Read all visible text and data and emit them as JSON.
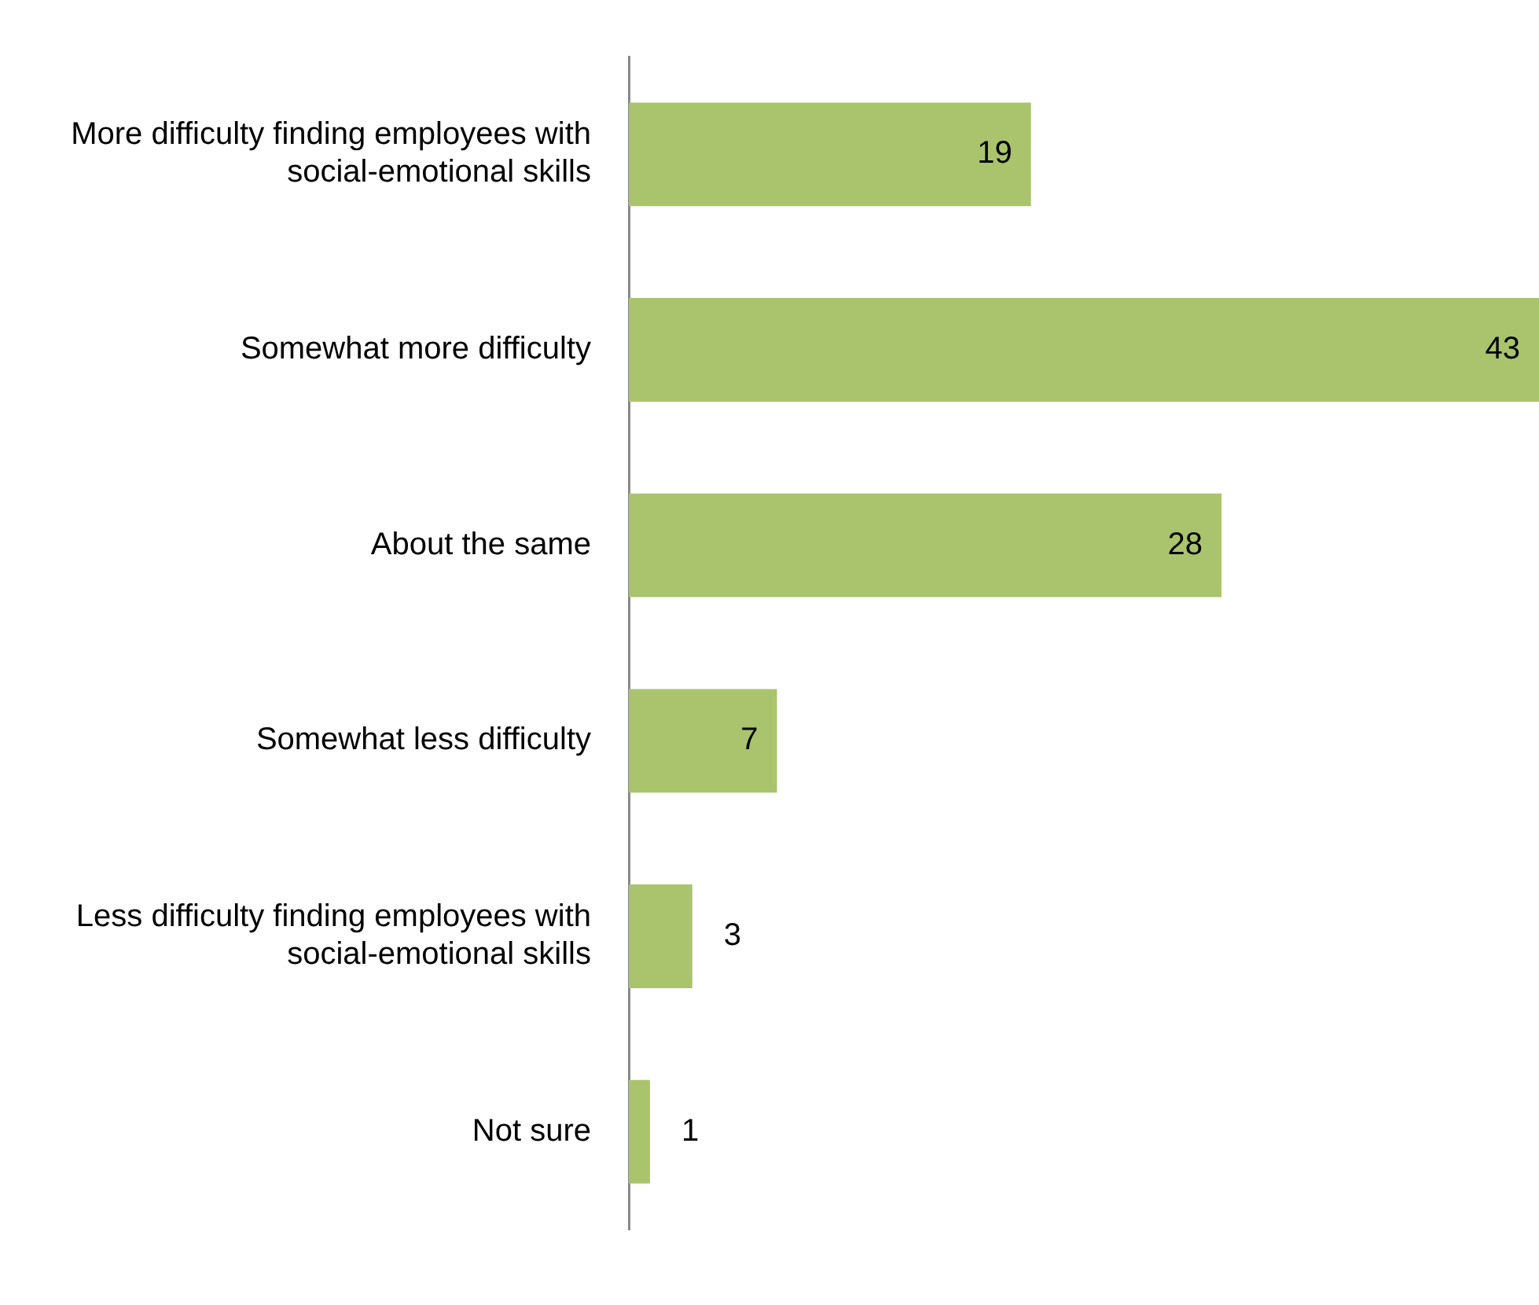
{
  "chart_data": {
    "type": "bar",
    "orientation": "horizontal",
    "categories": [
      "More difficulty finding employees with social-emotional skills",
      "Somewhat more difficulty",
      "About the same",
      "Somewhat less difficulty",
      "Less difficulty finding employees with social-emotional skills",
      "Not sure"
    ],
    "values": [
      19,
      43,
      28,
      7,
      3,
      1
    ],
    "color": "#a9c46c",
    "data_labels": true
  }
}
